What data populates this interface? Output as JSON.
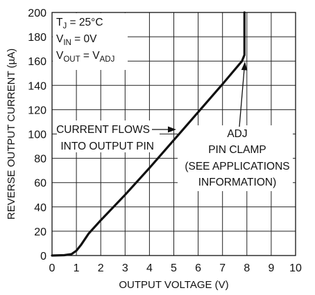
{
  "chart_data": {
    "type": "line",
    "xlabel": "OUTPUT VOLTAGE (V)",
    "ylabel": "REVERSE OUTPUT CURRENT (µA)",
    "xlim": [
      0,
      10
    ],
    "ylim": [
      0,
      200
    ],
    "x_ticks": [
      "0",
      "1",
      "2",
      "3",
      "4",
      "5",
      "6",
      "7",
      "8",
      "9",
      "10"
    ],
    "y_ticks": [
      "0",
      "20",
      "40",
      "60",
      "80",
      "100",
      "120",
      "140",
      "160",
      "180",
      "200"
    ],
    "grid": true,
    "conditions": {
      "line1": {
        "main": "T",
        "sub": "J",
        "rest": " = 25°C"
      },
      "line2": {
        "main": "V",
        "sub": "IN",
        "rest": " = 0V"
      },
      "line3": {
        "main": "V",
        "sub": "OUT",
        "eq": " = V",
        "sub2": "ADJ"
      }
    },
    "annotations": {
      "current_flows": [
        "CURRENT FLOWS",
        "INTO OUTPUT PIN"
      ],
      "adj_clamp": [
        "ADJ",
        "PIN CLAMP",
        "(SEE APPLICATIONS",
        "INFORMATION)"
      ]
    },
    "series": [
      {
        "color": "#111111",
        "points": [
          [
            0,
            0
          ],
          [
            0.5,
            0.3
          ],
          [
            0.8,
            1.2
          ],
          [
            1.0,
            4
          ],
          [
            1.2,
            9
          ],
          [
            1.5,
            18
          ],
          [
            2,
            29
          ],
          [
            3,
            50
          ],
          [
            4,
            72
          ],
          [
            5,
            95
          ],
          [
            6,
            118
          ],
          [
            7,
            141
          ],
          [
            7.8,
            160
          ],
          [
            7.9,
            165
          ],
          [
            7.9,
            200
          ]
        ]
      }
    ]
  }
}
